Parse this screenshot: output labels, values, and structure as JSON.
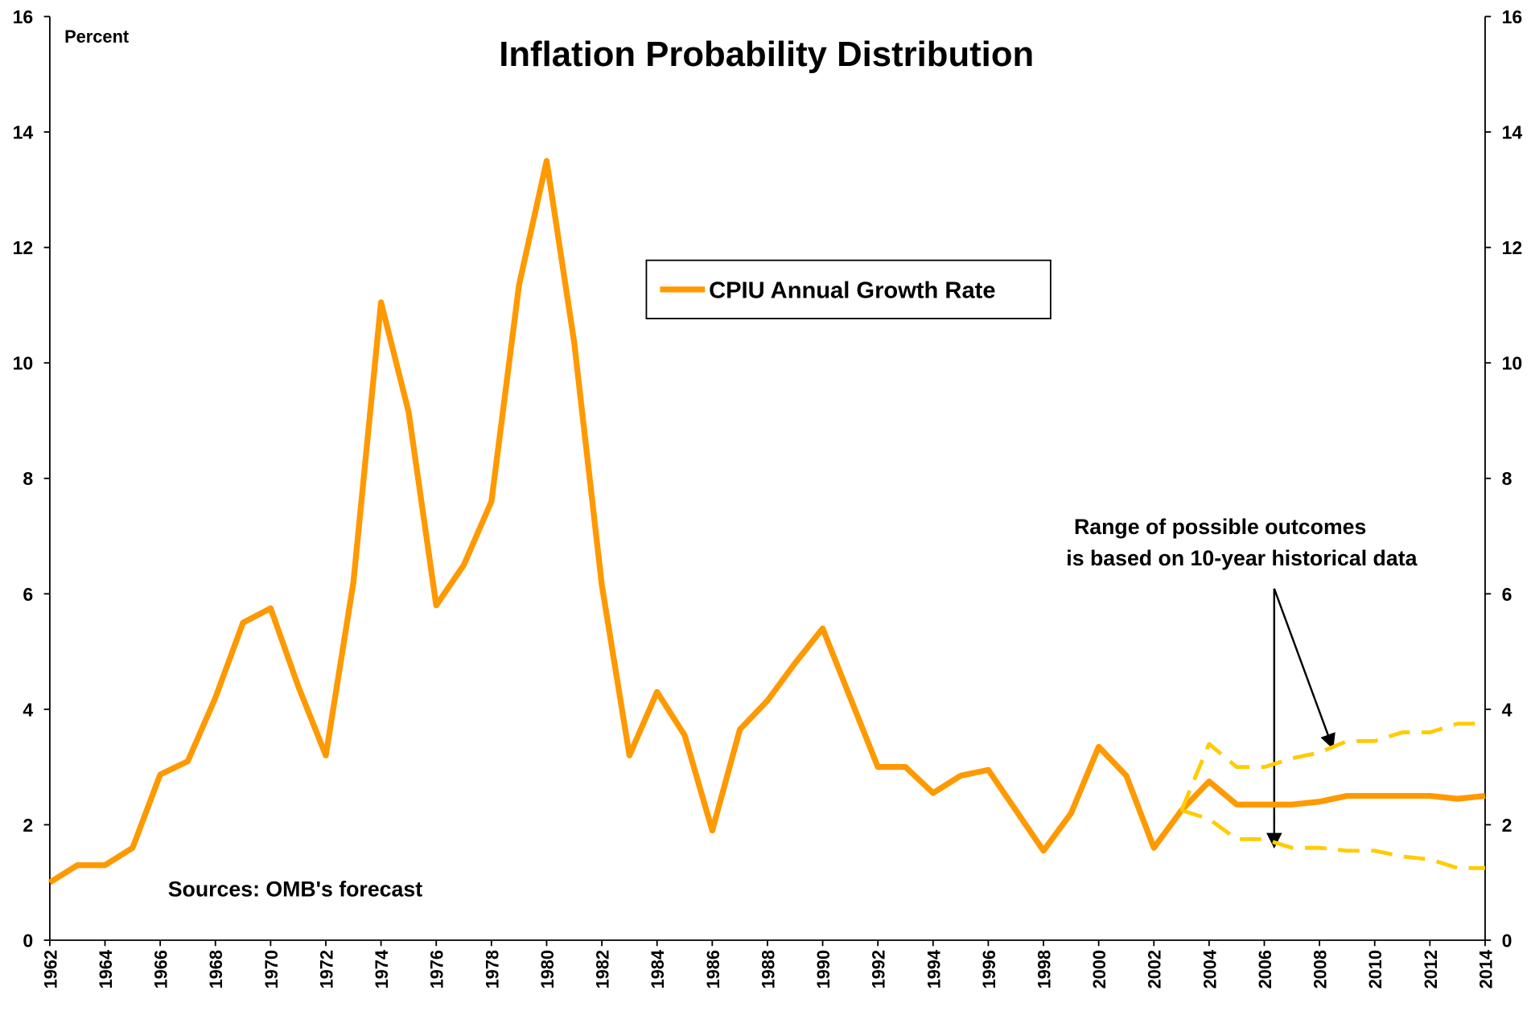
{
  "chart_data": {
    "type": "line",
    "title": "Inflation Probability Distribution",
    "y_axis_label": "Percent",
    "annotations": [
      "Sources:  OMB's forecast",
      "Range of possible outcomes",
      "is based on 10-year historical data"
    ],
    "x": [
      1962,
      1963,
      1964,
      1965,
      1966,
      1967,
      1968,
      1969,
      1970,
      1971,
      1972,
      1973,
      1974,
      1975,
      1976,
      1977,
      1978,
      1979,
      1980,
      1981,
      1982,
      1983,
      1984,
      1985,
      1986,
      1987,
      1988,
      1989,
      1990,
      1991,
      1992,
      1993,
      1994,
      1995,
      1996,
      1997,
      1998,
      1999,
      2000,
      2001,
      2002,
      2003,
      2004,
      2005,
      2006,
      2007,
      2008,
      2009,
      2010,
      2011,
      2012,
      2013,
      2014
    ],
    "series": [
      {
        "name": "CPIU Annual Growth Rate",
        "color": "#ff9900",
        "values": [
          1.0,
          1.3,
          1.3,
          1.6,
          2.87,
          3.1,
          4.2,
          5.5,
          5.75,
          4.4,
          3.2,
          6.2,
          11.05,
          9.15,
          5.8,
          6.5,
          7.6,
          11.35,
          13.5,
          10.35,
          6.15,
          3.2,
          4.3,
          3.55,
          1.9,
          3.65,
          4.15,
          4.8,
          5.4,
          4.2,
          3.0,
          3.0,
          2.55,
          2.85,
          2.95,
          2.25,
          1.55,
          2.2,
          3.35,
          2.85,
          1.6,
          2.25,
          2.75,
          2.35,
          2.35,
          2.35,
          2.4,
          2.5,
          2.5,
          2.5,
          2.5,
          2.45,
          2.5
        ]
      },
      {
        "color": "#ffcc00",
        "dashed": true,
        "values": [
          null,
          null,
          null,
          null,
          null,
          null,
          null,
          null,
          null,
          null,
          null,
          null,
          null,
          null,
          null,
          null,
          null,
          null,
          null,
          null,
          null,
          null,
          null,
          null,
          null,
          null,
          null,
          null,
          null,
          null,
          null,
          null,
          null,
          null,
          null,
          null,
          null,
          null,
          null,
          null,
          null,
          2.25,
          3.4,
          3.0,
          3.0,
          3.15,
          3.25,
          3.45,
          3.45,
          3.6,
          3.6,
          3.75,
          3.75
        ]
      },
      {
        "color": "#ffcc00",
        "dashed": true,
        "values": [
          null,
          null,
          null,
          null,
          null,
          null,
          null,
          null,
          null,
          null,
          null,
          null,
          null,
          null,
          null,
          null,
          null,
          null,
          null,
          null,
          null,
          null,
          null,
          null,
          null,
          null,
          null,
          null,
          null,
          null,
          null,
          null,
          null,
          null,
          null,
          null,
          null,
          null,
          null,
          null,
          null,
          2.25,
          2.1,
          1.75,
          1.75,
          1.6,
          1.6,
          1.55,
          1.55,
          1.45,
          1.4,
          1.25,
          1.25
        ]
      }
    ],
    "xlim": [
      1962,
      2014
    ],
    "xticks": [
      1962,
      1964,
      1966,
      1968,
      1970,
      1972,
      1974,
      1976,
      1978,
      1980,
      1982,
      1984,
      1986,
      1988,
      1990,
      1992,
      1994,
      1996,
      1998,
      2000,
      2002,
      2004,
      2006,
      2008,
      2010,
      2012,
      2014
    ],
    "ylim": [
      0,
      16
    ],
    "yticks": [
      0,
      2,
      4,
      6,
      8,
      10,
      12,
      14,
      16
    ],
    "y2lim": [
      0,
      16
    ],
    "y2ticks": [
      0,
      2,
      4,
      6,
      8,
      10,
      12,
      14,
      16
    ]
  }
}
